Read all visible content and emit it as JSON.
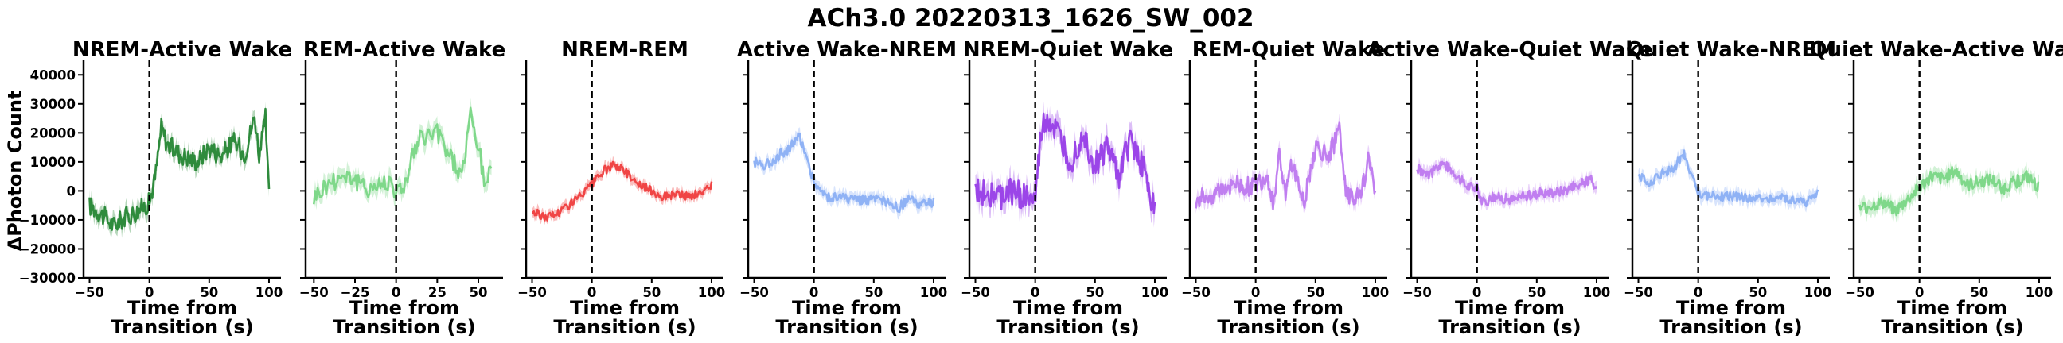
{
  "title": "ACh3.0 20220313_1626_SW_002",
  "ylabel": "ΔPhoton Count",
  "xlabel_lines": [
    "Time from",
    "Transition (s)"
  ],
  "colors": {
    "green": "#2e8b3c",
    "lightgreen": "#7fd88a",
    "red": "#f04545",
    "blue": "#8fb2f5",
    "purple": "#9b45e8",
    "lightpurple": "#c07ef0"
  },
  "chart_data": {
    "type": "line",
    "ylim": [
      -30000,
      45000
    ],
    "yticks": [
      -30000,
      -20000,
      -10000,
      0,
      10000,
      20000,
      30000,
      40000
    ],
    "ytick_labels": [
      "−30000",
      "−20000",
      "−10000",
      "0",
      "10000",
      "20000",
      "30000",
      "40000"
    ],
    "panels": [
      {
        "title": "NREM-Active Wake",
        "color": "green",
        "xlim": [
          -55,
          110
        ],
        "xticks": [
          -50,
          0,
          50,
          100
        ],
        "xtick_labels": [
          "−50",
          "0",
          "50",
          "100"
        ],
        "x_range": [
          -50,
          100
        ],
        "knots": [
          [
            -50,
            -5000
          ],
          [
            -40,
            -8000
          ],
          [
            -30,
            -12000
          ],
          [
            -20,
            -9000
          ],
          [
            -10,
            -7000
          ],
          [
            0,
            -4000
          ],
          [
            5,
            5000
          ],
          [
            10,
            22000
          ],
          [
            15,
            16000
          ],
          [
            25,
            13000
          ],
          [
            40,
            10000
          ],
          [
            50,
            15000
          ],
          [
            60,
            12000
          ],
          [
            70,
            17000
          ],
          [
            80,
            13000
          ],
          [
            88,
            26000
          ],
          [
            92,
            12000
          ],
          [
            97,
            25000
          ],
          [
            100,
            -2000
          ]
        ],
        "noise": 3500,
        "band": 3000
      },
      {
        "title": "REM-Active Wake",
        "color": "lightgreen",
        "xlim": [
          -55,
          65
        ],
        "xticks": [
          -50,
          -25,
          0,
          25,
          50
        ],
        "xtick_labels": [
          "−50",
          "−25",
          "0",
          "25",
          "50"
        ],
        "x_range": [
          -50,
          58
        ],
        "knots": [
          [
            -50,
            -2000
          ],
          [
            -40,
            3000
          ],
          [
            -30,
            6000
          ],
          [
            -20,
            1000
          ],
          [
            -10,
            2000
          ],
          [
            -3,
            4000
          ],
          [
            0,
            -1000
          ],
          [
            5,
            2000
          ],
          [
            10,
            12000
          ],
          [
            15,
            18000
          ],
          [
            25,
            20000
          ],
          [
            33,
            12000
          ],
          [
            40,
            5000
          ],
          [
            45,
            26000
          ],
          [
            50,
            15000
          ],
          [
            54,
            2000
          ],
          [
            58,
            9000
          ]
        ],
        "noise": 3500,
        "band": 3500
      },
      {
        "title": "NREM-REM",
        "color": "red",
        "xlim": [
          -55,
          110
        ],
        "xticks": [
          -50,
          0,
          50,
          100
        ],
        "xtick_labels": [
          "−50",
          "0",
          "50",
          "100"
        ],
        "x_range": [
          -50,
          100
        ],
        "knots": [
          [
            -50,
            -7000
          ],
          [
            -40,
            -9000
          ],
          [
            -30,
            -8000
          ],
          [
            -20,
            -5000
          ],
          [
            -10,
            -2000
          ],
          [
            0,
            2000
          ],
          [
            10,
            7000
          ],
          [
            20,
            9000
          ],
          [
            30,
            6000
          ],
          [
            40,
            2000
          ],
          [
            50,
            0
          ],
          [
            60,
            -2000
          ],
          [
            70,
            -1000
          ],
          [
            80,
            -2000
          ],
          [
            90,
            -1000
          ],
          [
            100,
            2000
          ]
        ],
        "noise": 1500,
        "band": 2000
      },
      {
        "title": "Active Wake-NREM",
        "color": "blue",
        "xlim": [
          -55,
          110
        ],
        "xticks": [
          -50,
          0,
          50,
          100
        ],
        "xtick_labels": [
          "−50",
          "0",
          "50",
          "100"
        ],
        "x_range": [
          -50,
          100
        ],
        "knots": [
          [
            -50,
            10000
          ],
          [
            -40,
            9000
          ],
          [
            -30,
            12000
          ],
          [
            -20,
            15000
          ],
          [
            -12,
            19000
          ],
          [
            -5,
            10000
          ],
          [
            0,
            3000
          ],
          [
            10,
            -2000
          ],
          [
            20,
            -2000
          ],
          [
            30,
            -3000
          ],
          [
            50,
            -3000
          ],
          [
            60,
            -4000
          ],
          [
            70,
            -6000
          ],
          [
            80,
            -3000
          ],
          [
            90,
            -5000
          ],
          [
            100,
            -4000
          ]
        ],
        "noise": 1800,
        "band": 2500
      },
      {
        "title": "NREM-Quiet Wake",
        "color": "purple",
        "xlim": [
          -55,
          110
        ],
        "xticks": [
          -50,
          0,
          50,
          100
        ],
        "xtick_labels": [
          "−50",
          "0",
          "50",
          "100"
        ],
        "x_range": [
          -50,
          100
        ],
        "knots": [
          [
            -50,
            -1000
          ],
          [
            -40,
            0
          ],
          [
            -30,
            -3000
          ],
          [
            -20,
            0
          ],
          [
            -10,
            -2000
          ],
          [
            0,
            -4000
          ],
          [
            5,
            20000
          ],
          [
            10,
            25000
          ],
          [
            20,
            18000
          ],
          [
            30,
            10000
          ],
          [
            40,
            20000
          ],
          [
            50,
            8000
          ],
          [
            60,
            15000
          ],
          [
            70,
            5000
          ],
          [
            80,
            18000
          ],
          [
            90,
            8000
          ],
          [
            95,
            2000
          ],
          [
            100,
            -8000
          ]
        ],
        "noise": 5000,
        "band": 4500
      },
      {
        "title": "REM-Quiet Wake",
        "color": "lightpurple",
        "xlim": [
          -55,
          110
        ],
        "xticks": [
          -50,
          0,
          50,
          100
        ],
        "xtick_labels": [
          "−50",
          "0",
          "50",
          "100"
        ],
        "x_range": [
          -50,
          100
        ],
        "knots": [
          [
            -50,
            -3000
          ],
          [
            -40,
            -2000
          ],
          [
            -30,
            0
          ],
          [
            -20,
            3000
          ],
          [
            -10,
            1000
          ],
          [
            0,
            2000
          ],
          [
            10,
            5000
          ],
          [
            15,
            -5000
          ],
          [
            20,
            15000
          ],
          [
            25,
            -3000
          ],
          [
            30,
            10000
          ],
          [
            40,
            -4000
          ],
          [
            50,
            15000
          ],
          [
            60,
            12000
          ],
          [
            70,
            20000
          ],
          [
            75,
            2000
          ],
          [
            80,
            -3000
          ],
          [
            90,
            2000
          ],
          [
            95,
            12000
          ],
          [
            100,
            -3000
          ]
        ],
        "noise": 3500,
        "band": 3000
      },
      {
        "title": "Active Wake-Quiet Wake",
        "color": "lightpurple",
        "xlim": [
          -55,
          110
        ],
        "xticks": [
          -50,
          0,
          50,
          100
        ],
        "xtick_labels": [
          "−50",
          "0",
          "50",
          "100"
        ],
        "x_range": [
          -50,
          100
        ],
        "knots": [
          [
            -50,
            8000
          ],
          [
            -40,
            5000
          ],
          [
            -30,
            10000
          ],
          [
            -20,
            7000
          ],
          [
            -10,
            2000
          ],
          [
            0,
            1000
          ],
          [
            5,
            -4000
          ],
          [
            15,
            -2000
          ],
          [
            30,
            -3000
          ],
          [
            50,
            -1000
          ],
          [
            70,
            0
          ],
          [
            85,
            2000
          ],
          [
            95,
            4000
          ],
          [
            100,
            0
          ]
        ],
        "noise": 1800,
        "band": 2500
      },
      {
        "title": "Quiet Wake-NREM",
        "color": "blue",
        "xlim": [
          -55,
          110
        ],
        "xticks": [
          -50,
          0,
          50,
          100
        ],
        "xtick_labels": [
          "−50",
          "0",
          "50",
          "100"
        ],
        "x_range": [
          -50,
          100
        ],
        "knots": [
          [
            -50,
            5000
          ],
          [
            -40,
            3000
          ],
          [
            -30,
            6000
          ],
          [
            -20,
            8000
          ],
          [
            -12,
            13000
          ],
          [
            -5,
            5000
          ],
          [
            0,
            -1000
          ],
          [
            10,
            -2000
          ],
          [
            30,
            -2000
          ],
          [
            50,
            -3000
          ],
          [
            70,
            -2000
          ],
          [
            90,
            -4000
          ],
          [
            100,
            -1000
          ]
        ],
        "noise": 1600,
        "band": 2500
      },
      {
        "title": "Quiet Wake-Active Wake",
        "color": "lightgreen",
        "xlim": [
          -55,
          110
        ],
        "xticks": [
          -50,
          0,
          50,
          100
        ],
        "xtick_labels": [
          "−50",
          "0",
          "50",
          "100"
        ],
        "x_range": [
          -50,
          100
        ],
        "knots": [
          [
            -50,
            -6000
          ],
          [
            -40,
            -5000
          ],
          [
            -30,
            -4000
          ],
          [
            -20,
            -7000
          ],
          [
            -10,
            -3000
          ],
          [
            0,
            1000
          ],
          [
            10,
            5000
          ],
          [
            20,
            4000
          ],
          [
            30,
            7000
          ],
          [
            40,
            2000
          ],
          [
            50,
            3000
          ],
          [
            60,
            4000
          ],
          [
            70,
            1000
          ],
          [
            80,
            3000
          ],
          [
            90,
            5000
          ],
          [
            100,
            1000
          ]
        ],
        "noise": 2200,
        "band": 3000
      }
    ]
  }
}
